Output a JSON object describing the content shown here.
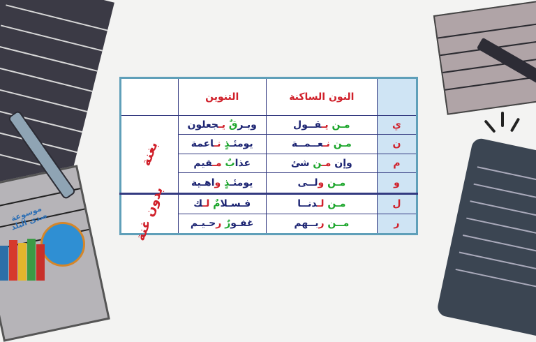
{
  "logo_text": "موسوعة صدى البلد",
  "colors": {
    "noon": "#1aa52a",
    "letter": "#d0202a",
    "text": "#1d2573",
    "border": "#5f9fb9",
    "letter_col_bg": "#cfe4f4"
  },
  "table": {
    "headers": {
      "letter": "",
      "noon_sakina": "النون الساكنة",
      "tanween": "التنوين",
      "group": ""
    },
    "groups": [
      {
        "label": "بغنة"
      },
      {
        "label": "بدون غنة"
      }
    ],
    "rows": [
      {
        "letter": "ي",
        "noon": [
          {
            "t": "مـن",
            "c": "g"
          },
          {
            "t": " "
          },
          {
            "t": "يـ",
            "c": "r"
          },
          {
            "t": "قــول"
          }
        ],
        "tanween": [
          {
            "t": "وبـر"
          },
          {
            "t": "قٌ",
            "c": "g"
          },
          {
            "t": " "
          },
          {
            "t": "يـ",
            "c": "r"
          },
          {
            "t": "جعلون"
          }
        ]
      },
      {
        "letter": "ن",
        "noon": [
          {
            "t": "مـن",
            "c": "g"
          },
          {
            "t": " "
          },
          {
            "t": "نـ",
            "c": "r"
          },
          {
            "t": "عــمــة"
          }
        ],
        "tanween": [
          {
            "t": "يومئـ"
          },
          {
            "t": "ذٍ",
            "c": "g"
          },
          {
            "t": " "
          },
          {
            "t": "نـ",
            "c": "r"
          },
          {
            "t": "اعمة"
          }
        ]
      },
      {
        "letter": "م",
        "noon": [
          {
            "t": "وإن "
          },
          {
            "t": "مـ",
            "c": "r"
          },
          {
            "t": "ن",
            "c": "g"
          },
          {
            "t": " شئ"
          }
        ],
        "tanween": [
          {
            "t": "عذا"
          },
          {
            "t": "بٌ",
            "c": "g"
          },
          {
            "t": " "
          },
          {
            "t": "مـ",
            "c": "r"
          },
          {
            "t": "قيم"
          }
        ]
      },
      {
        "letter": "و",
        "noon": [
          {
            "t": "مـن",
            "c": "g"
          },
          {
            "t": " "
          },
          {
            "t": "و",
            "c": "r"
          },
          {
            "t": "لــى"
          }
        ],
        "tanween": [
          {
            "t": "يومئـ"
          },
          {
            "t": "ذٍ",
            "c": "g"
          },
          {
            "t": " "
          },
          {
            "t": "و",
            "c": "r"
          },
          {
            "t": "اهـية"
          }
        ]
      },
      {
        "letter": "ل",
        "noon": [
          {
            "t": "مـن",
            "c": "g"
          },
          {
            "t": " "
          },
          {
            "t": "لـ",
            "c": "r"
          },
          {
            "t": "دنــا"
          }
        ],
        "tanween": [
          {
            "t": "فـسـلا"
          },
          {
            "t": "مٌ",
            "c": "g"
          },
          {
            "t": " "
          },
          {
            "t": "لـ",
            "c": "r"
          },
          {
            "t": "ك"
          }
        ]
      },
      {
        "letter": "ر",
        "noon": [
          {
            "t": "مــن",
            "c": "g"
          },
          {
            "t": " "
          },
          {
            "t": "ر",
            "c": "r"
          },
          {
            "t": "بــهم"
          }
        ],
        "tanween": [
          {
            "t": "غفـو"
          },
          {
            "t": "رٌ",
            "c": "g"
          },
          {
            "t": " "
          },
          {
            "t": "ر",
            "c": "r"
          },
          {
            "t": "حـيـم"
          }
        ]
      }
    ]
  }
}
